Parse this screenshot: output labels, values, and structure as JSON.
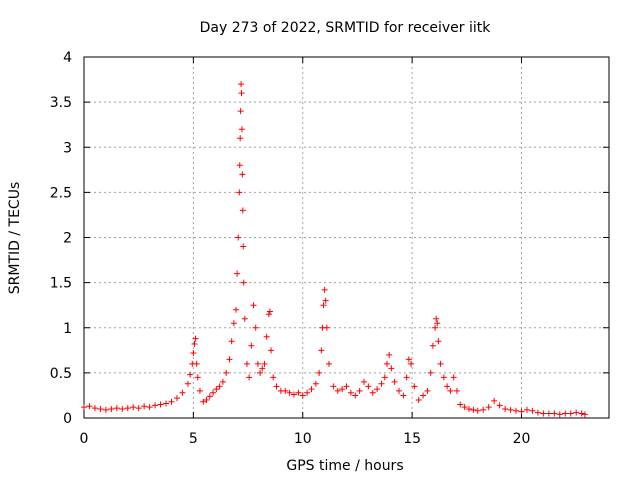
{
  "chart_data": {
    "type": "scatter",
    "title": "Day 273 of 2022, SRMTID for receiver iitk",
    "xlabel": "GPS time / hours",
    "ylabel": "SRMTID / TECUs",
    "xlim": [
      0,
      24
    ],
    "ylim": [
      0,
      4
    ],
    "xticks": [
      0,
      5,
      10,
      15,
      20
    ],
    "yticks": [
      0,
      0.5,
      1,
      1.5,
      2,
      2.5,
      3,
      3.5,
      4
    ],
    "xtick_labels": [
      "0",
      "5",
      "10",
      "15",
      "20"
    ],
    "ytick_labels": [
      "0",
      "0.5",
      "1",
      "1.5",
      "2",
      "2.5",
      "3",
      "3.5",
      "4"
    ],
    "grid": true,
    "marker": "+",
    "color": "#ff0000",
    "series": [
      {
        "name": "SRMTID",
        "x": [
          0.0,
          0.25,
          0.5,
          0.75,
          1.0,
          1.25,
          1.5,
          1.75,
          2.0,
          2.25,
          2.5,
          2.75,
          3.0,
          3.25,
          3.5,
          3.75,
          4.0,
          4.25,
          4.5,
          4.75,
          4.85,
          4.95,
          5.0,
          5.05,
          5.1,
          5.15,
          5.2,
          5.3,
          5.45,
          5.6,
          5.75,
          5.9,
          6.05,
          6.2,
          6.35,
          6.5,
          6.65,
          6.75,
          6.85,
          6.95,
          7.0,
          7.05,
          7.1,
          7.12,
          7.14,
          7.16,
          7.18,
          7.2,
          7.22,
          7.24,
          7.26,
          7.28,
          7.3,
          7.35,
          7.45,
          7.55,
          7.65,
          7.75,
          7.85,
          7.95,
          8.05,
          8.15,
          8.25,
          8.35,
          8.45,
          8.5,
          8.55,
          8.65,
          8.8,
          9.0,
          9.2,
          9.4,
          9.6,
          9.8,
          10.0,
          10.2,
          10.4,
          10.6,
          10.75,
          10.85,
          10.9,
          10.95,
          11.0,
          11.05,
          11.1,
          11.2,
          11.4,
          11.6,
          11.8,
          12.0,
          12.2,
          12.4,
          12.6,
          12.8,
          13.0,
          13.2,
          13.4,
          13.6,
          13.75,
          13.85,
          13.95,
          14.05,
          14.2,
          14.4,
          14.6,
          14.75,
          14.85,
          14.95,
          15.1,
          15.3,
          15.5,
          15.7,
          15.85,
          15.95,
          16.05,
          16.1,
          16.15,
          16.2,
          16.3,
          16.45,
          16.6,
          16.75,
          16.9,
          17.05,
          17.2,
          17.4,
          17.6,
          17.8,
          18.0,
          18.25,
          18.5,
          18.75,
          19.0,
          19.25,
          19.5,
          19.75,
          20.0,
          20.25,
          20.5,
          20.75,
          21.0,
          21.25,
          21.5,
          21.75,
          22.0,
          22.25,
          22.5,
          22.75,
          22.9
        ],
        "y": [
          0.12,
          0.13,
          0.11,
          0.1,
          0.09,
          0.1,
          0.11,
          0.1,
          0.11,
          0.12,
          0.11,
          0.13,
          0.12,
          0.14,
          0.15,
          0.16,
          0.18,
          0.22,
          0.28,
          0.38,
          0.48,
          0.6,
          0.72,
          0.82,
          0.88,
          0.6,
          0.45,
          0.3,
          0.18,
          0.2,
          0.24,
          0.28,
          0.32,
          0.35,
          0.4,
          0.5,
          0.65,
          0.85,
          1.05,
          1.2,
          1.6,
          2.0,
          2.5,
          2.8,
          3.1,
          3.4,
          3.7,
          3.6,
          3.2,
          2.7,
          2.3,
          1.9,
          1.5,
          1.1,
          0.6,
          0.45,
          0.8,
          1.25,
          1.0,
          0.6,
          0.5,
          0.55,
          0.6,
          0.9,
          1.15,
          1.18,
          0.75,
          0.45,
          0.35,
          0.3,
          0.3,
          0.28,
          0.26,
          0.28,
          0.25,
          0.28,
          0.32,
          0.38,
          0.5,
          0.75,
          1.0,
          1.25,
          1.42,
          1.3,
          1.0,
          0.6,
          0.35,
          0.3,
          0.32,
          0.35,
          0.28,
          0.25,
          0.3,
          0.4,
          0.35,
          0.28,
          0.32,
          0.38,
          0.45,
          0.6,
          0.7,
          0.55,
          0.4,
          0.3,
          0.25,
          0.45,
          0.65,
          0.6,
          0.35,
          0.2,
          0.25,
          0.3,
          0.5,
          0.8,
          1.0,
          1.1,
          1.05,
          0.85,
          0.6,
          0.45,
          0.35,
          0.3,
          0.45,
          0.3,
          0.15,
          0.12,
          0.1,
          0.09,
          0.08,
          0.09,
          0.12,
          0.19,
          0.14,
          0.1,
          0.09,
          0.08,
          0.07,
          0.09,
          0.08,
          0.06,
          0.05,
          0.05,
          0.05,
          0.04,
          0.05,
          0.05,
          0.06,
          0.05,
          0.04
        ]
      }
    ]
  }
}
